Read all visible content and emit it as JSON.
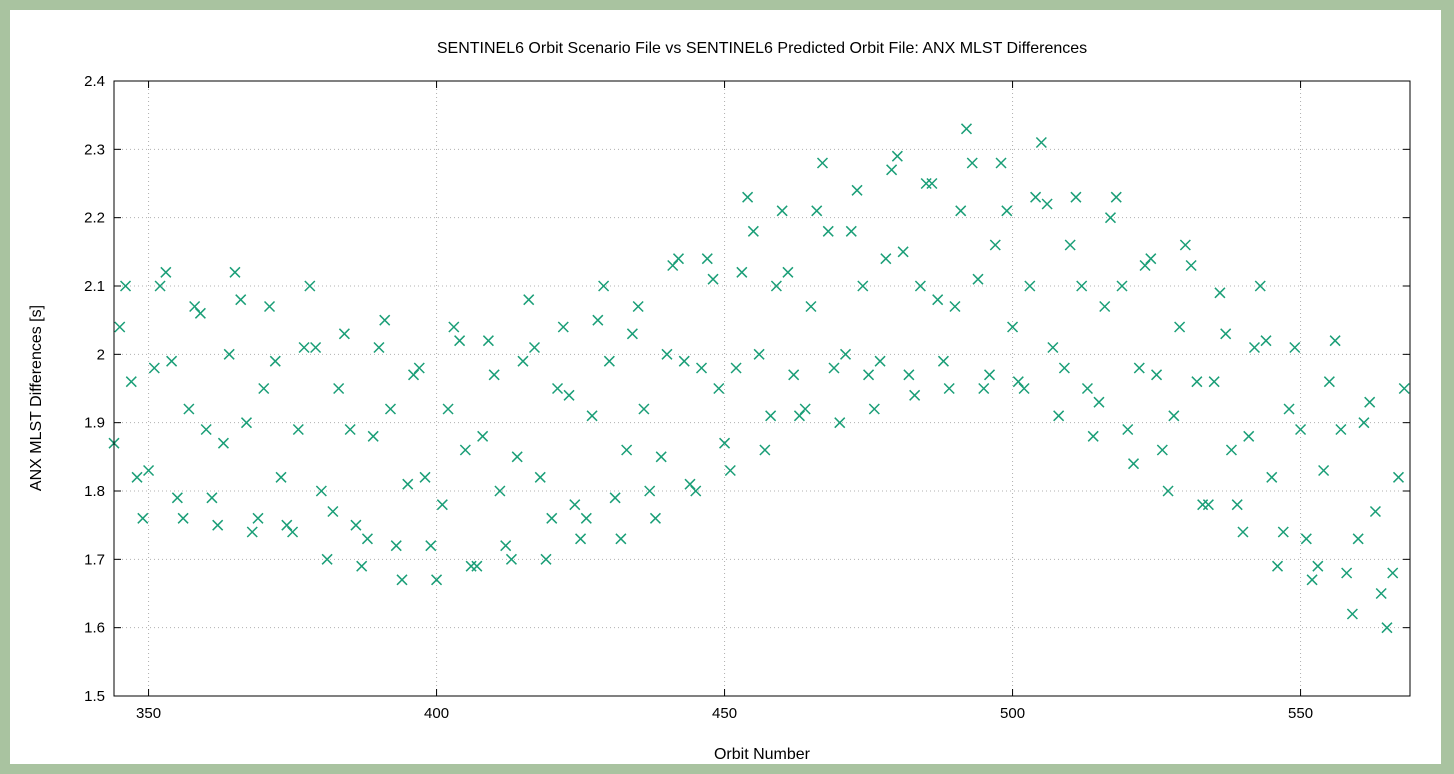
{
  "chart_data": {
    "type": "scatter",
    "title": "SENTINEL6 Orbit Scenario File vs SENTINEL6 Predicted Orbit File: ANX MLST Differences",
    "xlabel": "Orbit Number",
    "ylabel": "ANX MLST Differences [s]",
    "xlim": [
      344,
      569
    ],
    "ylim": [
      1.5,
      2.4
    ],
    "x_ticks": [
      "350",
      "400",
      "450",
      "500",
      "550"
    ],
    "x_tick_values": [
      350,
      400,
      450,
      500,
      550
    ],
    "y_ticks": [
      "1.5",
      "1.6",
      "1.7",
      "1.8",
      "1.9",
      "2",
      "2.1",
      "2.2",
      "2.3",
      "2.4"
    ],
    "y_tick_values": [
      1.5,
      1.6,
      1.7,
      1.8,
      1.9,
      2.0,
      2.1,
      2.2,
      2.3,
      2.4
    ],
    "grid": true,
    "marker": "x",
    "marker_color": "#1a9e77",
    "series": [
      {
        "x": [
          344,
          345,
          346,
          347,
          348,
          349,
          350,
          351,
          352,
          353,
          354,
          355,
          356,
          357,
          358,
          359,
          360,
          361,
          362,
          363,
          364,
          365,
          366,
          367,
          368,
          369,
          370,
          371,
          372,
          373,
          374,
          375,
          376,
          377,
          378,
          379,
          380,
          381,
          382,
          383,
          384,
          385,
          386,
          387,
          388,
          389,
          390,
          391,
          392,
          393,
          394,
          395,
          396,
          397,
          398,
          399,
          400,
          401,
          402,
          403,
          404,
          405,
          406,
          407,
          408,
          409,
          410,
          411,
          412,
          413,
          414,
          415,
          416,
          417,
          418,
          419,
          420,
          421,
          422,
          423,
          424,
          425,
          426,
          427,
          428,
          429,
          430,
          431,
          432,
          433,
          434,
          435,
          436,
          437,
          438,
          439,
          440,
          441,
          442,
          443,
          444,
          445,
          446,
          447,
          448,
          449,
          450,
          451,
          452,
          453,
          454,
          455,
          456,
          457,
          458,
          459,
          460,
          461,
          462,
          463,
          464,
          465,
          466,
          467,
          468,
          469,
          470,
          471,
          472,
          473,
          474,
          475,
          476,
          477,
          478,
          479,
          480,
          481,
          482,
          483,
          484,
          485,
          486,
          487,
          488,
          489,
          490,
          491,
          492,
          493,
          494,
          495,
          496,
          497,
          498,
          499,
          500,
          501,
          502,
          503,
          504,
          505,
          506,
          507,
          508,
          509,
          510,
          511,
          512,
          513,
          514,
          515,
          516,
          517,
          518,
          519,
          520,
          521,
          522,
          523,
          524,
          525,
          526,
          527,
          528,
          529,
          530,
          531,
          532,
          533,
          534,
          535,
          536,
          537,
          538,
          539,
          540,
          541,
          542,
          543,
          544,
          545,
          546,
          547,
          548,
          549,
          550,
          551,
          552,
          553,
          554,
          555,
          556,
          557,
          558,
          559,
          560,
          561,
          562,
          563,
          564,
          565,
          566,
          567,
          568
        ],
        "y": [
          1.87,
          2.04,
          2.1,
          1.96,
          1.82,
          1.76,
          1.83,
          1.98,
          2.1,
          2.12,
          1.99,
          1.79,
          1.76,
          1.92,
          2.07,
          2.06,
          1.89,
          1.79,
          1.75,
          1.87,
          2.0,
          2.12,
          2.08,
          1.9,
          1.74,
          1.76,
          1.95,
          2.07,
          1.99,
          1.82,
          1.75,
          1.74,
          1.89,
          2.01,
          2.1,
          2.01,
          1.8,
          1.7,
          1.77,
          1.95,
          2.03,
          1.89,
          1.75,
          1.69,
          1.73,
          1.88,
          2.01,
          2.05,
          1.92,
          1.72,
          1.67,
          1.81,
          1.97,
          1.98,
          1.82,
          1.72,
          1.67,
          1.78,
          1.92,
          2.04,
          2.02,
          1.86,
          1.69,
          1.69,
          1.88,
          2.02,
          1.97,
          1.8,
          1.72,
          1.7,
          1.85,
          1.99,
          2.08,
          2.01,
          1.82,
          1.7,
          1.76,
          1.95,
          2.04,
          1.94,
          1.78,
          1.73,
          1.76,
          1.91,
          2.05,
          2.1,
          1.99,
          1.79,
          1.73,
          1.86,
          2.03,
          2.07,
          1.92,
          1.8,
          1.76,
          1.85,
          2.0,
          2.13,
          2.14,
          1.99,
          1.81,
          1.8,
          1.98,
          2.14,
          2.11,
          1.95,
          1.87,
          1.83,
          1.98,
          2.12,
          2.23,
          2.18,
          2.0,
          1.86,
          1.91,
          2.1,
          2.21,
          2.12,
          1.97,
          1.91,
          1.92,
          2.07,
          2.21,
          2.28,
          2.18,
          1.98,
          1.9,
          2.0,
          2.18,
          2.24,
          2.1,
          1.97,
          1.92,
          1.99,
          2.14,
          2.27,
          2.29,
          2.15,
          1.97,
          1.94,
          2.1,
          2.25,
          2.25,
          2.08,
          1.99,
          1.95,
          2.07,
          2.21,
          2.33,
          2.28,
          2.11,
          1.95,
          1.97,
          2.16,
          2.28,
          2.21,
          2.04,
          1.96,
          1.95,
          2.1,
          2.23,
          2.31,
          2.22,
          2.01,
          1.91,
          1.98,
          2.16,
          2.23,
          2.1,
          1.95,
          1.88,
          1.93,
          2.07,
          2.2,
          2.23,
          2.1,
          1.89,
          1.84,
          1.98,
          2.13,
          2.14,
          1.97,
          1.86,
          1.8,
          1.91,
          2.04,
          2.16,
          2.13,
          1.96,
          1.78,
          1.78,
          1.96,
          2.09,
          2.03,
          1.86,
          1.78,
          1.74,
          1.88,
          2.01,
          2.1,
          2.02,
          1.82,
          1.69,
          1.74,
          1.92,
          2.01,
          1.89,
          1.73,
          1.67,
          1.69,
          1.83,
          1.96,
          2.02,
          1.89,
          1.68,
          1.62,
          1.73,
          1.9,
          1.93,
          1.77,
          1.65,
          1.6,
          1.68,
          1.82,
          1.95
        ]
      }
    ]
  }
}
